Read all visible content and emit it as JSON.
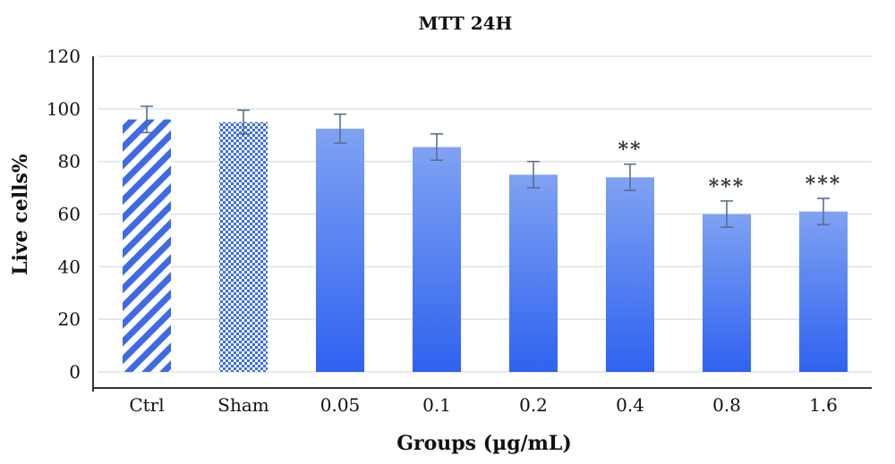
{
  "chart_data": {
    "type": "bar",
    "title": "MTT 24H",
    "xlabel": "Groups (µg/mL)",
    "ylabel": "Live cells%",
    "ylim": [
      0,
      120
    ],
    "yticks": [
      "0",
      "20",
      "40",
      "60",
      "80",
      "100",
      "120"
    ],
    "grid": true,
    "categories": [
      "Ctrl",
      "Sham",
      "0.05",
      "0.1",
      "0.2",
      "0.4",
      "0.8",
      "1.6"
    ],
    "values": [
      96,
      95,
      92.5,
      85.5,
      75,
      74,
      60,
      61
    ],
    "error": [
      5,
      4.5,
      5.5,
      5,
      5,
      5,
      5,
      5
    ],
    "significance": [
      "",
      "",
      "",
      "",
      "",
      "**",
      "***",
      "***"
    ],
    "bar_styles": [
      "diagonal-stripes",
      "crosshatch",
      "gradient",
      "gradient",
      "gradient",
      "gradient",
      "gradient",
      "gradient"
    ],
    "colors": {
      "bar_top": "#7fa2f2",
      "bar_bottom": "#2f62f0",
      "pattern": "#3d6be6",
      "grid": "#d8e3ea",
      "axis": "#333333"
    }
  }
}
